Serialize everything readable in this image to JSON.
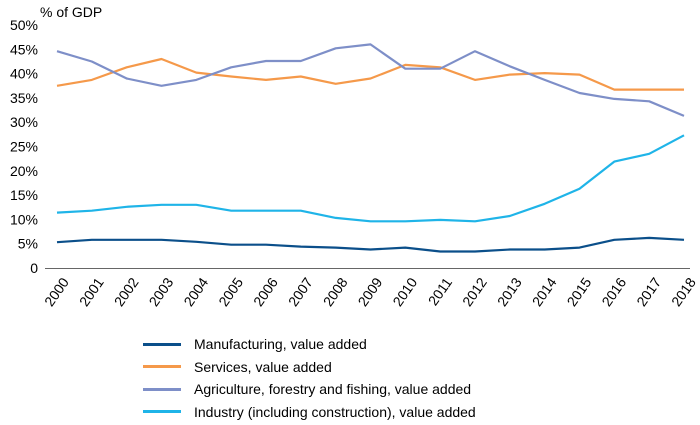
{
  "chart_data": {
    "type": "line",
    "ylabel": "% of GDP",
    "x": [
      "2000",
      "2001",
      "2002",
      "2003",
      "2004",
      "2005",
      "2006",
      "2007",
      "2008",
      "2009",
      "2010",
      "2011",
      "2012",
      "2013",
      "2014",
      "2015",
      "2016",
      "2017",
      "2018"
    ],
    "ylim": [
      0,
      50
    ],
    "yticks": [
      "0",
      "5%",
      "10%",
      "15%",
      "20%",
      "25%",
      "30%",
      "35%",
      "40%",
      "45%",
      "50%"
    ],
    "grid": false,
    "legend_position": "bottom",
    "series": [
      {
        "name": "Manufacturing, value added",
        "color": "#0b4f8a",
        "values": [
          5.3,
          5.8,
          5.8,
          5.8,
          5.4,
          4.8,
          4.8,
          4.4,
          4.2,
          3.8,
          4.2,
          3.4,
          3.4,
          3.8,
          3.8,
          4.2,
          5.8,
          6.2,
          5.8
        ]
      },
      {
        "name": "Services, value added",
        "color": "#f5994a",
        "values": [
          37.5,
          38.7,
          41.3,
          43.0,
          40.2,
          39.4,
          38.7,
          39.4,
          37.9,
          39.0,
          41.8,
          41.3,
          38.7,
          39.8,
          40.1,
          39.8,
          36.7,
          36.7,
          36.7
        ]
      },
      {
        "name": "Agriculture, forestry and fishing, value added",
        "color": "#7e8fc8",
        "values": [
          44.6,
          42.5,
          39.0,
          37.5,
          38.7,
          41.3,
          42.6,
          42.6,
          45.2,
          46.0,
          41.0,
          41.0,
          44.6,
          41.5,
          38.7,
          36.0,
          34.8,
          34.3,
          31.3
        ]
      },
      {
        "name": "Industry (including construction), value added",
        "color": "#1fb4e8",
        "values": [
          11.4,
          11.8,
          12.6,
          13.0,
          13.0,
          11.8,
          11.8,
          11.8,
          10.3,
          9.6,
          9.6,
          9.9,
          9.6,
          10.7,
          13.2,
          16.3,
          21.9,
          23.5,
          27.3
        ]
      }
    ]
  }
}
